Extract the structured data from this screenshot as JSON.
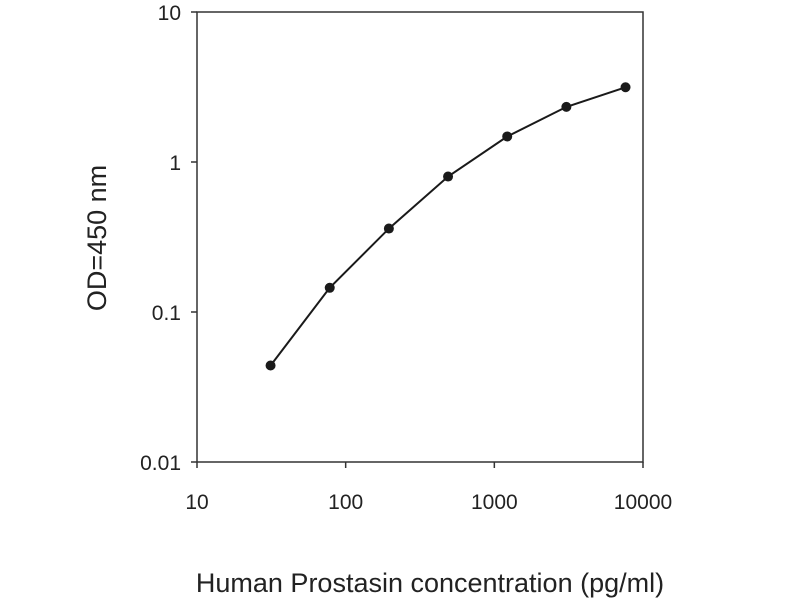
{
  "chart_data": {
    "type": "line",
    "title": "",
    "xlabel": "Human Prostasin concentration (pg/ml)",
    "ylabel": "OD=450 nm",
    "x_scale": "log",
    "y_scale": "log",
    "xlim": [
      10,
      10000
    ],
    "ylim": [
      0.01,
      10
    ],
    "x_ticks": [
      10,
      100,
      1000,
      10000
    ],
    "x_tick_labels": [
      "10",
      "100",
      "1000",
      "10000"
    ],
    "y_ticks": [
      0.01,
      0.1,
      1,
      10
    ],
    "y_tick_labels": [
      "0.01",
      "0.1",
      "1",
      "10"
    ],
    "grid": false,
    "legend": "none",
    "colors": {
      "line": "#1a1a1a",
      "marker": "#1a1a1a",
      "axis": "#333333"
    },
    "series": [
      {
        "x": [
          31.25,
          78.13,
          195.3,
          488.3,
          1220.7,
          3051.8,
          7629.4
        ],
        "y": [
          0.044,
          0.145,
          0.36,
          0.8,
          1.48,
          2.33,
          3.15
        ]
      }
    ]
  }
}
